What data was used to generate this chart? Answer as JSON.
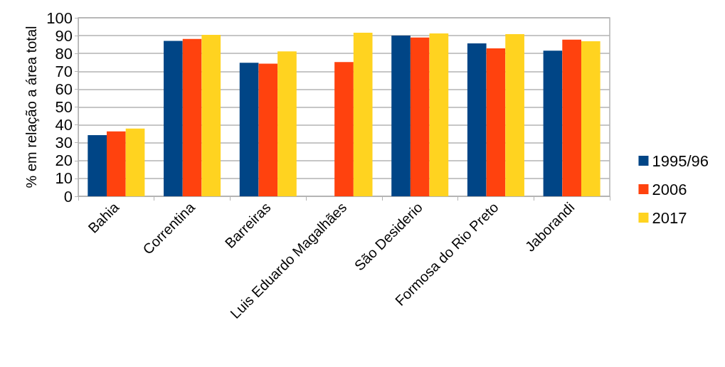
{
  "chart_data": {
    "type": "bar",
    "ylabel": "% em relação a área total",
    "categories": [
      "Bahia",
      "Correntina",
      "Barreiras",
      "Luis Eduardo Magalhães",
      "São Desiderio",
      "Formosa do Rio Preto",
      "Jaborandi"
    ],
    "series": [
      {
        "name": "1995/96",
        "color": "#004586",
        "values": [
          34.3,
          87.1,
          74.8,
          null,
          90.0,
          85.7,
          81.6
        ]
      },
      {
        "name": "2006",
        "color": "#ff420e",
        "values": [
          36.4,
          88.1,
          74.3,
          75.2,
          88.9,
          82.9,
          87.7
        ]
      },
      {
        "name": "2017",
        "color": "#ffd320",
        "values": [
          37.9,
          90.4,
          81.2,
          91.6,
          91.2,
          90.8,
          86.9
        ]
      }
    ],
    "ylim": [
      0,
      100
    ],
    "yticks": [
      0,
      10,
      20,
      30,
      40,
      50,
      60,
      70,
      80,
      90,
      100
    ],
    "grid": "y",
    "legend": "right"
  }
}
